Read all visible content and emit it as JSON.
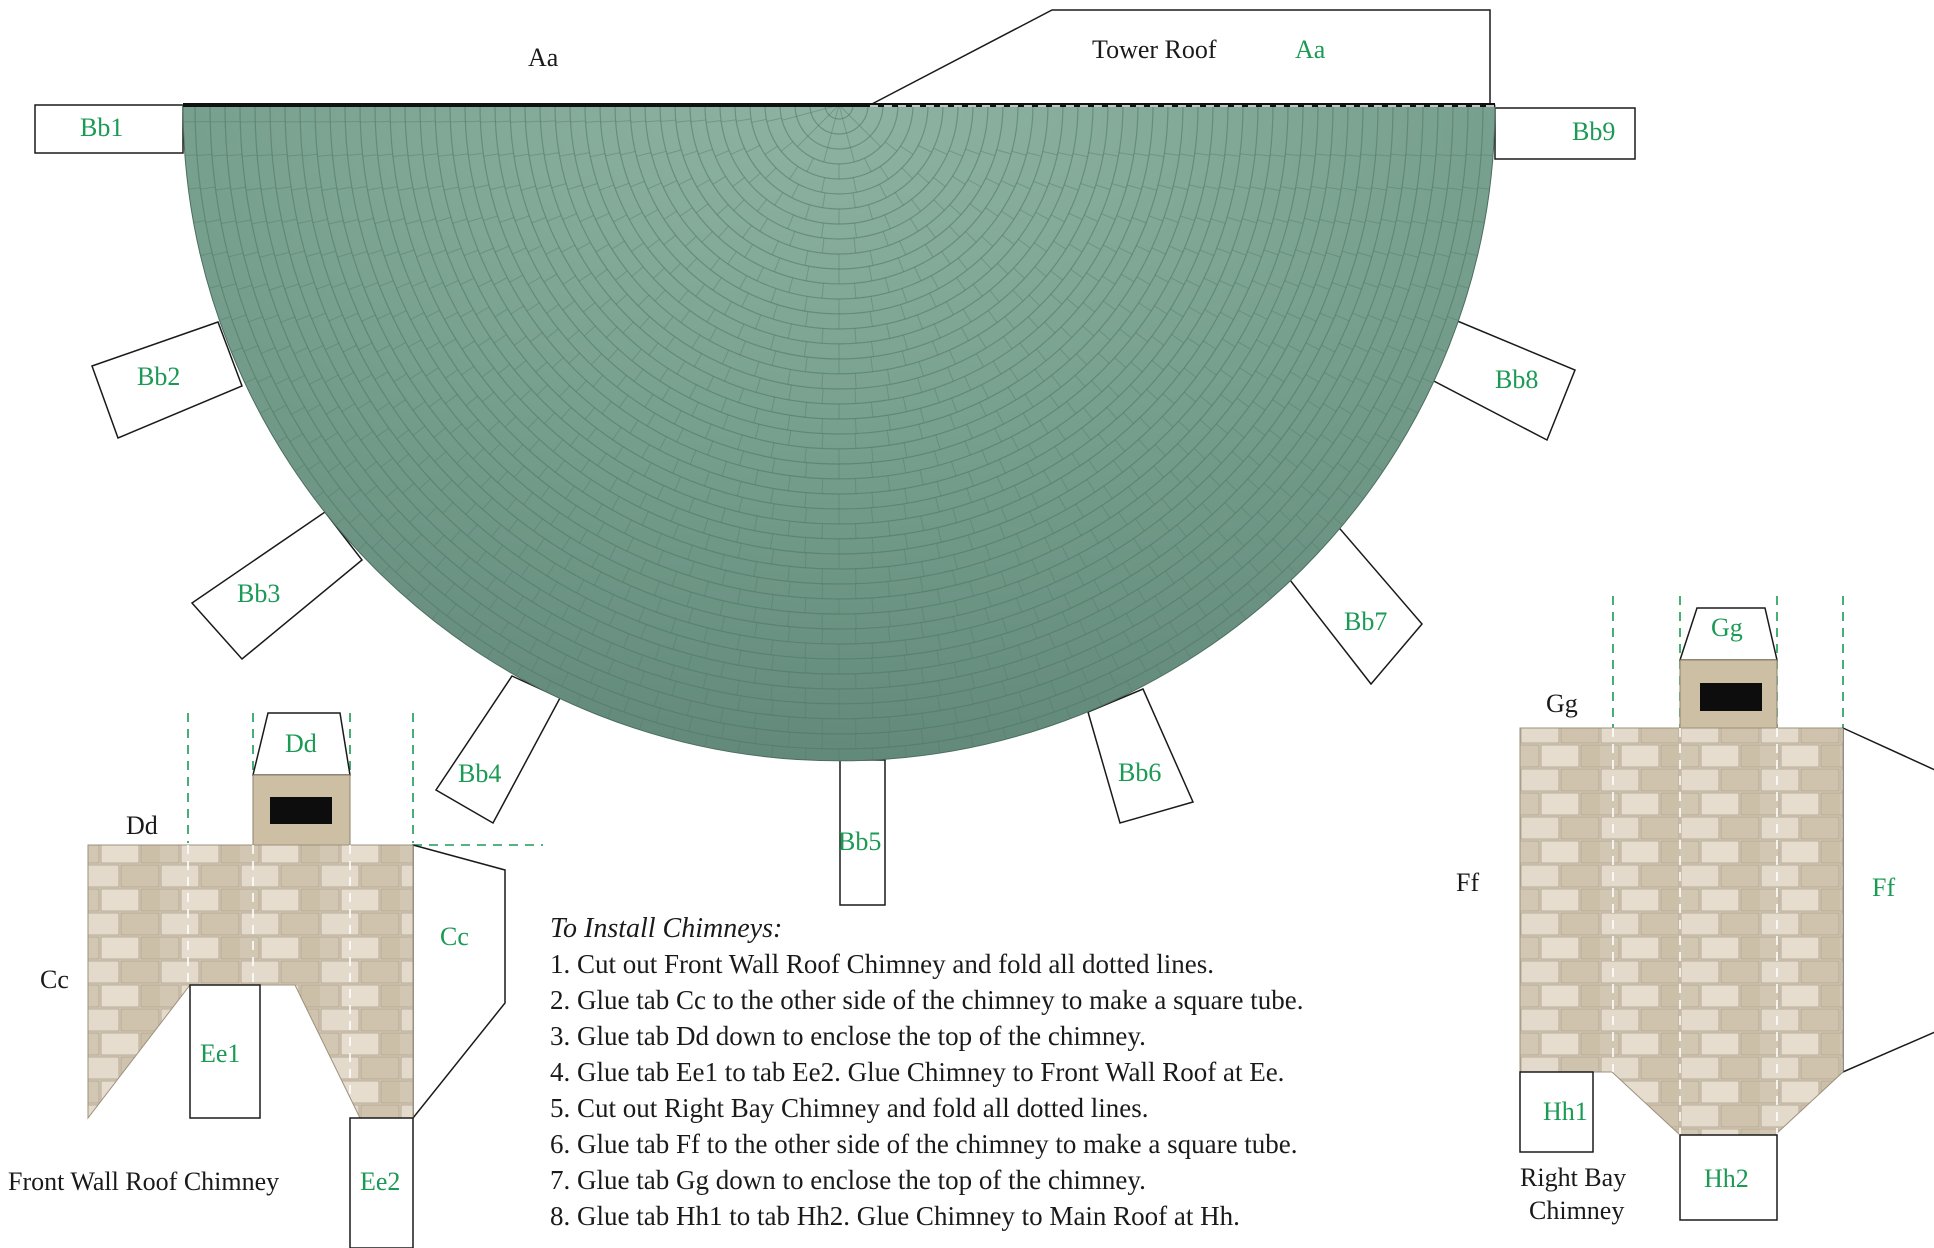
{
  "tower_roof": {
    "title": "Tower Roof",
    "top_label": "Aa",
    "tab_aa": "Aa",
    "tabs": [
      "Bb1",
      "Bb2",
      "Bb3",
      "Bb4",
      "Bb5",
      "Bb6",
      "Bb7",
      "Bb8",
      "Bb9"
    ]
  },
  "front_chimney": {
    "name": "Front Wall Roof Chimney",
    "label_dd": "Dd",
    "label_cc": "Cc",
    "tab_dd": "Dd",
    "tab_cc": "Cc",
    "tab_ee1": "Ee1",
    "tab_ee2": "Ee2"
  },
  "right_chimney": {
    "name_line1": "Right Bay",
    "name_line2": "Chimney",
    "label_gg": "Gg",
    "label_ff": "Ff",
    "tab_gg": "Gg",
    "tab_ff": "Ff",
    "tab_hh1": "Hh1",
    "tab_hh2": "Hh2"
  },
  "instructions": {
    "title": "To Install Chimneys:",
    "steps": [
      "1. Cut out Front Wall Roof Chimney and fold all dotted lines.",
      "2. Glue tab Cc to the other side of the chimney to make a square tube.",
      "3. Glue tab Dd down to enclose the top of the chimney.",
      "4. Glue tab Ee1 to tab Ee2.  Glue Chimney to Front Wall Roof at Ee.",
      "5. Cut out Right Bay Chimney and fold all dotted lines.",
      "6. Glue tab Ff to the other side of the chimney to make a square tube.",
      "7. Glue tab Gg down to enclose the top of the chimney.",
      "8. Glue tab Hh1 to tab Hh2.  Glue Chimney to Main Roof at Hh."
    ]
  },
  "colors": {
    "roof": "#6f9a86",
    "stone": "#d9cfbd",
    "label_green": "#1a9a55",
    "outline": "#1a1a1a"
  }
}
